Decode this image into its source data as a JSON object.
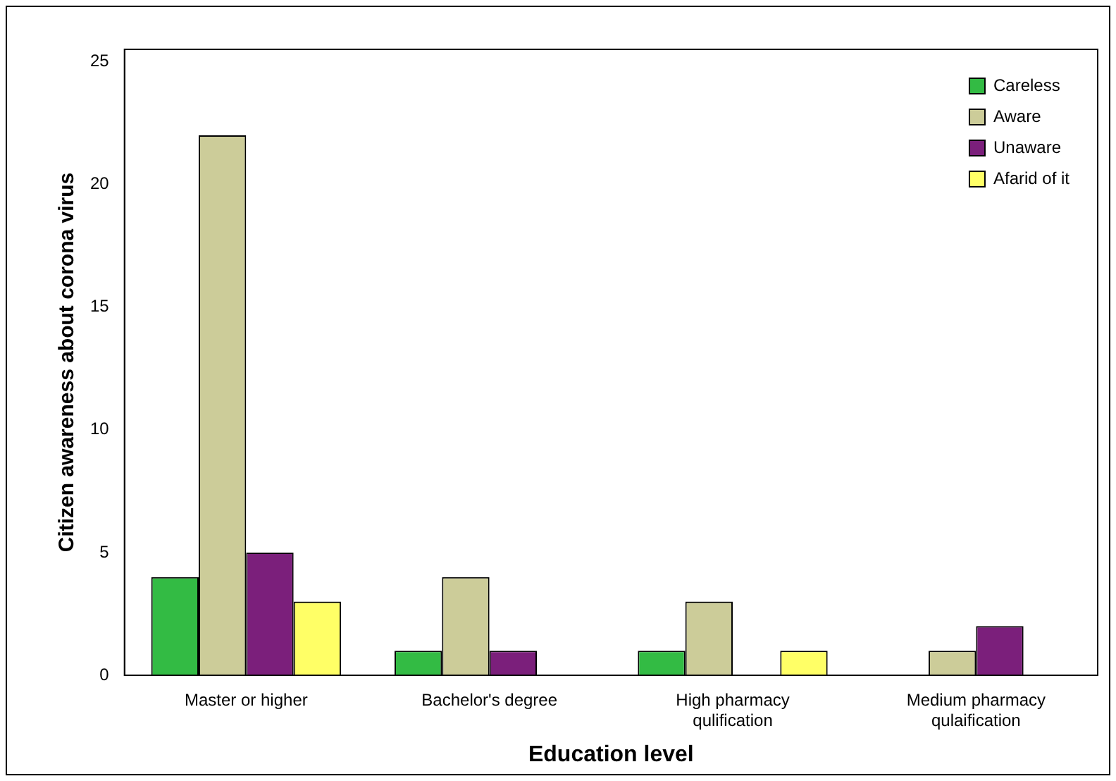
{
  "chart_data": {
    "type": "bar",
    "xlabel": "Education level",
    "ylabel": "Citizen awareness about corona virus",
    "categories": [
      "Master or higher",
      "Bachelor's degree",
      "High pharmacy qulification",
      "Medium pharmacy qulaification"
    ],
    "series": [
      {
        "name": "Careless",
        "color": "#33bb44",
        "values": [
          4,
          1,
          1,
          null
        ]
      },
      {
        "name": "Aware",
        "color": "#cccc99",
        "values": [
          22,
          4,
          3,
          1
        ]
      },
      {
        "name": "Unaware",
        "color": "#7b1f7b",
        "values": [
          5,
          1,
          null,
          2
        ]
      },
      {
        "name": "Afarid of it",
        "color": "#ffff66",
        "values": [
          3,
          null,
          1,
          null
        ]
      }
    ],
    "ylim": [
      0,
      25.5
    ],
    "yticks": [
      0,
      5,
      10,
      15,
      20,
      25
    ],
    "grid": false,
    "legend": "top right"
  }
}
